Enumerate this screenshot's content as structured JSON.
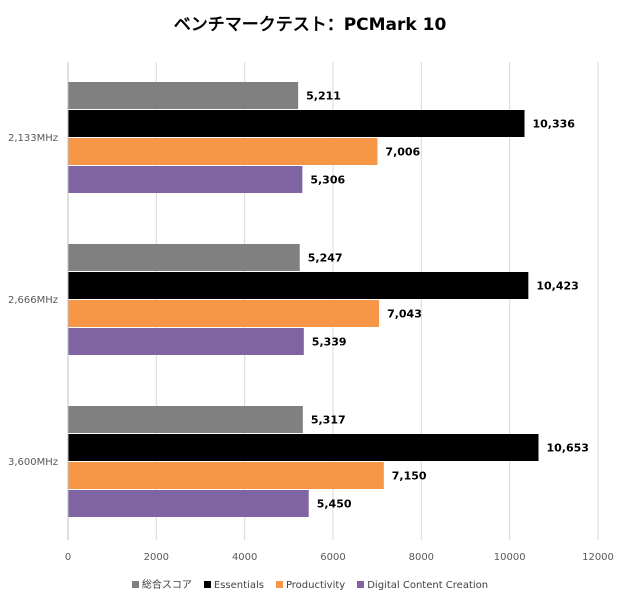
{
  "chart_data": {
    "type": "bar",
    "orientation": "horizontal",
    "title": "ベンチマークテスト：PCMark 10",
    "categories": [
      "2,133MHz",
      "2,666MHz",
      "3,600MHz"
    ],
    "series": [
      {
        "name": "総合スコア",
        "color": "#808080",
        "values": [
          5211,
          5247,
          5317
        ],
        "labels": [
          "5,211",
          "5,247",
          "5,317"
        ]
      },
      {
        "name": "Essentials",
        "color": "#000000",
        "values": [
          10336,
          10423,
          10653
        ],
        "labels": [
          "10,336",
          "10,423",
          "10,653"
        ]
      },
      {
        "name": "Productivity",
        "color": "#F79646",
        "values": [
          7006,
          7043,
          7150
        ],
        "labels": [
          "7,006",
          "7,043",
          "7,150"
        ]
      },
      {
        "name": "Digital Content Creation",
        "color": "#8064A2",
        "values": [
          5306,
          5339,
          5450
        ],
        "labels": [
          "5,306",
          "5,339",
          "5,450"
        ]
      }
    ],
    "xlim": [
      0,
      12000
    ],
    "xticks": [
      "0",
      "2000",
      "4000",
      "6000",
      "8000",
      "10000",
      "12000"
    ],
    "xlabel": "",
    "ylabel": "",
    "grid": "vertical",
    "legend_position": "bottom"
  }
}
